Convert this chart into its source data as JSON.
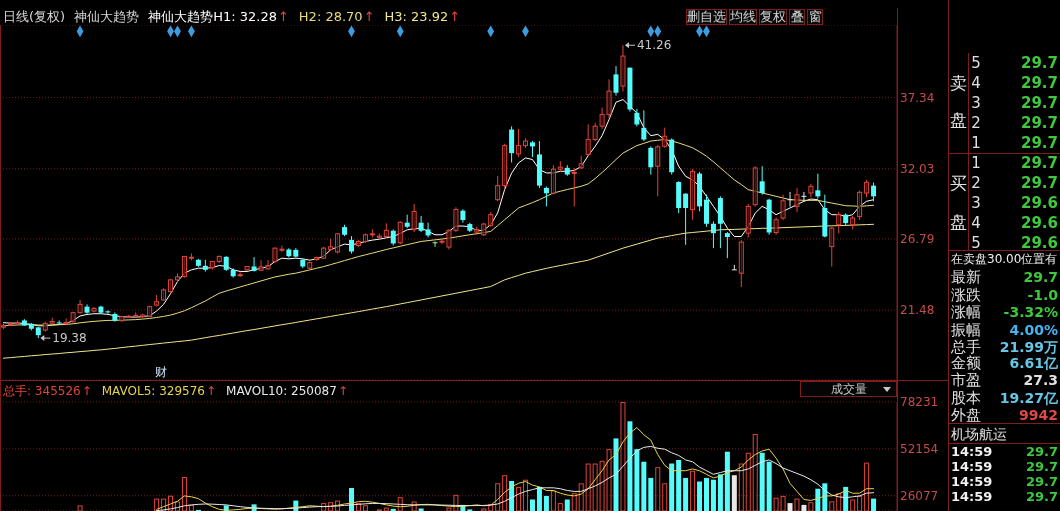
{
  "chart_data": [
    {
      "type": "candlestick",
      "title": "日线(复权)",
      "subtitle": "神仙大趋势",
      "categories": [
        null,
        null,
        null,
        null,
        null,
        null,
        null,
        null,
        null,
        null,
        null,
        null,
        null,
        null,
        null,
        null,
        null,
        null,
        null,
        null,
        null,
        null,
        null,
        null,
        null,
        null,
        null,
        null,
        null,
        null,
        null,
        null,
        null,
        null,
        null,
        null,
        null,
        null,
        null,
        null,
        null,
        null,
        null,
        null,
        null,
        null,
        null,
        null,
        null,
        null,
        null,
        null,
        null,
        null,
        null,
        null,
        null,
        null,
        null,
        null,
        null,
        null,
        null,
        null,
        null,
        null,
        null,
        null,
        null,
        null,
        null,
        null,
        null,
        null,
        null,
        null,
        null,
        null,
        null,
        null,
        null,
        null,
        null,
        null,
        null,
        null,
        null,
        null,
        null,
        null,
        null,
        null,
        null,
        null,
        null,
        null,
        null,
        null,
        null,
        null,
        null,
        null,
        null,
        null,
        null,
        null,
        null,
        null,
        null,
        null,
        null,
        null,
        null,
        null,
        null,
        null,
        null,
        null,
        null,
        null,
        null,
        null,
        null,
        null,
        null,
        null
      ],
      "ohlc": [
        [
          20.2,
          20.45,
          20.05,
          20.3
        ],
        [
          20.4,
          20.55,
          20.3,
          20.43
        ],
        [
          20.45,
          20.7,
          20.4,
          20.55
        ],
        [
          20.7,
          20.8,
          20.3,
          20.32
        ],
        [
          20.45,
          20.5,
          19.95,
          20.08
        ],
        [
          20.18,
          20.2,
          19.38,
          19.6
        ],
        [
          19.98,
          20.6,
          19.86,
          20.48
        ],
        [
          20.5,
          20.9,
          20.45,
          20.62
        ],
        [
          20.55,
          20.7,
          20.4,
          20.48
        ],
        [
          20.45,
          20.85,
          20.4,
          20.55
        ],
        [
          20.6,
          21.35,
          20.55,
          21.28
        ],
        [
          21.28,
          22.23,
          21.2,
          21.9
        ],
        [
          21.73,
          21.9,
          21.2,
          21.28
        ],
        [
          21.4,
          21.7,
          21.3,
          21.6
        ],
        [
          21.73,
          21.8,
          21.2,
          21.28
        ],
        [
          21.38,
          21.45,
          21.2,
          21.3
        ],
        [
          21.18,
          21.3,
          20.6,
          20.68
        ],
        [
          20.68,
          21.05,
          20.6,
          20.98
        ],
        [
          20.95,
          21.1,
          20.9,
          21.02
        ],
        [
          21.0,
          21.3,
          20.95,
          21.08
        ],
        [
          20.98,
          21.2,
          20.9,
          21.1
        ],
        [
          20.98,
          21.8,
          20.95,
          21.73
        ],
        [
          21.85,
          22.6,
          21.75,
          22.1
        ],
        [
          22.23,
          23.1,
          22.2,
          22.98
        ],
        [
          22.85,
          23.8,
          22.8,
          23.73
        ],
        [
          23.73,
          24.2,
          23.6,
          23.95
        ],
        [
          23.98,
          25.5,
          23.9,
          25.48
        ],
        [
          25.4,
          25.7,
          25.2,
          25.42
        ],
        [
          25.23,
          25.3,
          24.7,
          24.78
        ],
        [
          24.78,
          25.23,
          24.35,
          24.48
        ],
        [
          24.63,
          25.15,
          24.5,
          25.1
        ],
        [
          25.1,
          25.55,
          25.0,
          25.48
        ],
        [
          25.45,
          25.5,
          24.4,
          24.48
        ],
        [
          24.48,
          24.6,
          23.9,
          24.0
        ],
        [
          24.05,
          24.3,
          23.95,
          24.12
        ],
        [
          24.48,
          24.75,
          24.4,
          24.73
        ],
        [
          24.73,
          25.43,
          24.35,
          24.4
        ],
        [
          24.45,
          25.2,
          24.4,
          24.7
        ],
        [
          24.55,
          25.2,
          24.5,
          24.8
        ],
        [
          25.1,
          26.15,
          25.0,
          26.1
        ],
        [
          26.0,
          26.3,
          25.8,
          26.02
        ],
        [
          26.0,
          26.1,
          25.4,
          25.5
        ],
        [
          25.97,
          26.1,
          25.4,
          25.47
        ],
        [
          25.23,
          25.3,
          24.6,
          24.73
        ],
        [
          24.6,
          25.1,
          24.5,
          25.02
        ],
        [
          25.25,
          25.45,
          25.15,
          25.4
        ],
        [
          25.35,
          26.2,
          25.3,
          26.1
        ],
        [
          26.0,
          26.8,
          25.9,
          26.2
        ],
        [
          25.82,
          27.2,
          25.7,
          27.17
        ],
        [
          27.67,
          27.85,
          27.0,
          27.1
        ],
        [
          26.72,
          27.0,
          25.7,
          25.85
        ],
        [
          26.3,
          26.7,
          26.2,
          26.6
        ],
        [
          26.6,
          27.2,
          26.5,
          27.1
        ],
        [
          27.15,
          27.5,
          26.9,
          27.17
        ],
        [
          26.9,
          27.2,
          26.85,
          27.0
        ],
        [
          26.97,
          27.95,
          26.9,
          27.43
        ],
        [
          27.4,
          27.5,
          26.3,
          26.45
        ],
        [
          26.5,
          28.1,
          26.4,
          28.03
        ],
        [
          28.0,
          28.6,
          27.6,
          27.7
        ],
        [
          27.48,
          29.4,
          27.3,
          28.84
        ],
        [
          28.0,
          28.5,
          27.3,
          27.4
        ],
        [
          27.5,
          28.0,
          26.9,
          27.05
        ],
        [
          26.5,
          26.6,
          26.2,
          26.5
        ],
        [
          26.55,
          26.8,
          26.4,
          26.62
        ],
        [
          26.18,
          27.5,
          26.0,
          27.43
        ],
        [
          27.43,
          29.15,
          27.3,
          28.99
        ],
        [
          28.9,
          29.0,
          28.0,
          28.2
        ],
        [
          27.9,
          28.0,
          27.3,
          27.4
        ],
        [
          27.3,
          27.7,
          27.1,
          27.5
        ],
        [
          27.1,
          28.0,
          27.0,
          27.9
        ],
        [
          27.8,
          28.8,
          27.7,
          28.6
        ],
        [
          29.72,
          31.5,
          29.6,
          30.77
        ],
        [
          30.77,
          33.9,
          30.6,
          33.76
        ],
        [
          34.96,
          35.2,
          32.5,
          33.2
        ],
        [
          33.14,
          35.0,
          32.9,
          33.76
        ],
        [
          33.76,
          34.3,
          33.6,
          34.1
        ],
        [
          34.0,
          34.1,
          32.9,
          33.7
        ],
        [
          33.1,
          34.1,
          30.6,
          30.77
        ],
        [
          30.6,
          30.7,
          29.22,
          30.2
        ],
        [
          30.2,
          32.3,
          30.1,
          32.0
        ],
        [
          32.0,
          32.6,
          31.8,
          32.15
        ],
        [
          32.1,
          32.3,
          31.5,
          31.6
        ],
        [
          31.7,
          32.1,
          29.22,
          31.75
        ],
        [
          32.1,
          33.0,
          32.0,
          32.4
        ],
        [
          33.09,
          35.34,
          33.0,
          34.21
        ],
        [
          34.21,
          35.46,
          34.1,
          35.21
        ],
        [
          35.21,
          36.6,
          35.0,
          36.09
        ],
        [
          36.09,
          38.71,
          35.8,
          37.83
        ],
        [
          39.08,
          39.7,
          37.5,
          37.71
        ],
        [
          38.21,
          41.26,
          37.8,
          40.45
        ],
        [
          39.58,
          39.6,
          36.3,
          36.46
        ],
        [
          36.21,
          36.5,
          35.2,
          35.34
        ],
        [
          35.09,
          36.4,
          34.1,
          34.21
        ],
        [
          33.59,
          33.7,
          31.59,
          32.14
        ],
        [
          32.22,
          33.8,
          29.97,
          33.67
        ],
        [
          33.71,
          35.1,
          33.6,
          34.46
        ],
        [
          34.21,
          34.3,
          31.6,
          31.77
        ],
        [
          31.04,
          31.1,
          28.72,
          29.1
        ],
        [
          30.17,
          30.2,
          26.35,
          29.1
        ],
        [
          28.97,
          32.0,
          28.22,
          31.84
        ],
        [
          31.67,
          31.8,
          28.85,
          29.22
        ],
        [
          29.72,
          30.1,
          27.7,
          27.92
        ],
        [
          27.92,
          28.1,
          26.1,
          27.22
        ],
        [
          29.84,
          29.97,
          26.1,
          27.92
        ],
        [
          27.22,
          27.3,
          25.35,
          26.93
        ],
        [
          24.48,
          24.85,
          24.48,
          24.48
        ],
        [
          24.23,
          26.7,
          23.2,
          26.55
        ],
        [
          27.22,
          29.4,
          26.9,
          29.22
        ],
        [
          29.35,
          32.22,
          29.2,
          32.09
        ],
        [
          31.09,
          32.22,
          30.1,
          30.22
        ],
        [
          29.72,
          29.8,
          27.1,
          27.27
        ],
        [
          27.27,
          28.4,
          27.1,
          28.22
        ],
        [
          28.35,
          30.09,
          28.2,
          29.64
        ],
        [
          29.72,
          30.3,
          29.2,
          29.72
        ],
        [
          29.22,
          30.6,
          28.8,
          30.09
        ],
        [
          29.97,
          30.3,
          29.6,
          29.97
        ],
        [
          30.22,
          30.9,
          29.9,
          30.72
        ],
        [
          30.42,
          31.67,
          29.8,
          29.97
        ],
        [
          29.1,
          30.1,
          26.9,
          26.97
        ],
        [
          26.22,
          27.7,
          24.72,
          27.6
        ],
        [
          27.85,
          28.8,
          27.2,
          28.6
        ],
        [
          28.6,
          28.7,
          27.8,
          27.97
        ],
        [
          27.85,
          28.5,
          27.5,
          28.35
        ],
        [
          28.47,
          30.4,
          28.2,
          30.27
        ],
        [
          30.22,
          31.2,
          29.9,
          31.02
        ],
        [
          30.77,
          31.0,
          29.6,
          29.97
        ]
      ],
      "colors": [
        "#e0453a",
        "#e0453a",
        "#e0453a",
        "#54fcfc",
        "#54fcfc",
        "#54fcfc",
        "#e0453a",
        "#e0453a",
        "#54fcfc",
        "#e0453a",
        "#e0453a",
        "#e0453a",
        "#54fcfc",
        "#e0453a",
        "#54fcfc",
        "#54fcfc",
        "#54fcfc",
        "#e0453a",
        "#e0453a",
        "#e0453a",
        "#e0453a",
        "#e0453a",
        "#e0453a",
        "#e0453a",
        "#e0453a",
        "#e0453a",
        "#e0453a",
        "#e0453a",
        "#54fcfc",
        "#54fcfc",
        "#e0453a",
        "#e0453a",
        "#54fcfc",
        "#54fcfc",
        "#e0453a",
        "#e0453a",
        "#54fcfc",
        "#e0453a",
        "#e0453a",
        "#e0453a",
        "#e0453a",
        "#54fcfc",
        "#54fcfc",
        "#54fcfc",
        "#e0453a",
        "#e0453a",
        "#e0453a",
        "#e0453a",
        "#e0453a",
        "#54fcfc",
        "#54fcfc",
        "#e0453a",
        "#e0453a",
        "#e0453a",
        "#e0453a",
        "#e0453a",
        "#54fcfc",
        "#e0453a",
        "#54fcfc",
        "#e0453a",
        "#54fcfc",
        "#54fcfc",
        "#9cf09c",
        "#e0453a",
        "#e0453a",
        "#e0453a",
        "#54fcfc",
        "#54fcfc",
        "#e0453a",
        "#e0453a",
        "#e0453a",
        "#e0453a",
        "#e0453a",
        "#54fcfc",
        "#e0453a",
        "#e0453a",
        "#54fcfc",
        "#54fcfc",
        "#54fcfc",
        "#e0453a",
        "#e0453a",
        "#54fcfc",
        "#e0453a",
        "#e0453a",
        "#e0453a",
        "#e0453a",
        "#e0453a",
        "#e0453a",
        "#54fcfc",
        "#e0453a",
        "#54fcfc",
        "#54fcfc",
        "#54fcfc",
        "#54fcfc",
        "#e0453a",
        "#e0453a",
        "#54fcfc",
        "#54fcfc",
        "#54fcfc",
        "#e0453a",
        "#54fcfc",
        "#54fcfc",
        "#54fcfc",
        "#54fcfc",
        "#54fcfc",
        "#e8e8e8",
        "#e0453a",
        "#e0453a",
        "#e0453a",
        "#54fcfc",
        "#54fcfc",
        "#e0453a",
        "#e0453a",
        "#e8e8e8",
        "#e0453a",
        "#e8e8e8",
        "#e0453a",
        "#54fcfc",
        "#54fcfc",
        "#e0453a",
        "#e0453a",
        "#54fcfc",
        "#e0453a",
        "#e0453a",
        "#e0453a",
        "#54fcfc"
      ],
      "ylim": [
        16.25,
        42.77
      ],
      "yticks": [
        21.48,
        26.79,
        32.03,
        37.34
      ],
      "grid": "y",
      "legend": "top left",
      "tick_labels": "y",
      "series": [
        {
          "type": "line",
          "name": "神仙大趋势H1: 32.28",
          "color": "#ffffff",
          "values": [
            20.53,
            20.5,
            20.5,
            20.48,
            20.4,
            20.3,
            20.3,
            20.35,
            20.4,
            20.45,
            20.7,
            21.03,
            21.15,
            21.2,
            21.2,
            21.15,
            21.05,
            20.98,
            20.95,
            20.95,
            20.98,
            21.05,
            21.4,
            21.9,
            22.7,
            23.6,
            24.23,
            24.48,
            24.6,
            24.6,
            24.65,
            24.8,
            24.75,
            24.48,
            24.36,
            24.36,
            24.48,
            24.6,
            24.72,
            25.1,
            25.35,
            25.3,
            25.35,
            25.3,
            25.2,
            25.3,
            25.5,
            25.97,
            26.2,
            26.4,
            26.35,
            26.45,
            26.6,
            26.7,
            26.77,
            26.87,
            26.97,
            27.2,
            27.47,
            27.55,
            27.6,
            27.35,
            27.1,
            27.1,
            27.35,
            27.75,
            27.75,
            27.7,
            27.4,
            27.45,
            27.85,
            28.73,
            30.47,
            31.7,
            32.47,
            32.84,
            32.72,
            31.97,
            31.72,
            31.72,
            31.84,
            31.84,
            31.9,
            32.2,
            33.0,
            33.7,
            34.5,
            35.7,
            37.0,
            37.2,
            36.7,
            36.2,
            35.1,
            34.5,
            34.6,
            34.2,
            33.46,
            32.22,
            31.47,
            31.2,
            30.72,
            29.97,
            29.22,
            28.47,
            27.6,
            26.97,
            26.97,
            27.72,
            28.72,
            29.22,
            28.97,
            28.6,
            28.85,
            29.1,
            29.35,
            29.6,
            29.77,
            29.72,
            28.97,
            28.6,
            28.6,
            28.47,
            28.6,
            29.22,
            29.6,
            29.72
          ]
        },
        {
          "type": "line",
          "name": "H2: 28.70",
          "color": "#e8dc78",
          "values": [
            20.3,
            20.33,
            20.36,
            20.38,
            20.38,
            20.36,
            20.35,
            20.36,
            20.38,
            20.4,
            20.45,
            20.52,
            20.58,
            20.63,
            20.67,
            20.7,
            20.71,
            20.72,
            20.74,
            20.76,
            20.8,
            20.85,
            20.92,
            21.0,
            21.1,
            21.25,
            21.42,
            21.65,
            21.9,
            22.15,
            22.45,
            22.73,
            22.9,
            23.05,
            23.2,
            23.35,
            23.5,
            23.65,
            23.8,
            23.95,
            24.05,
            24.15,
            24.23,
            24.35,
            24.47,
            24.6,
            24.72,
            24.87,
            25.02,
            25.17,
            25.32,
            25.47,
            25.6,
            25.73,
            25.86,
            26.0,
            26.12,
            26.24,
            26.36,
            26.48,
            26.6,
            26.66,
            26.72,
            26.78,
            26.85,
            26.93,
            27.02,
            27.1,
            27.18,
            27.26,
            27.35,
            27.78,
            28.22,
            28.66,
            29.1,
            29.3,
            29.5,
            29.72,
            29.97,
            30.22,
            30.35,
            30.48,
            30.6,
            30.72,
            30.9,
            31.3,
            31.75,
            32.22,
            32.72,
            33.2,
            33.48,
            33.76,
            33.93,
            34.1,
            34.16,
            34.21,
            34.1,
            33.96,
            33.78,
            33.6,
            33.3,
            32.97,
            32.55,
            32.1,
            31.65,
            31.2,
            30.85,
            30.47,
            30.35,
            30.22,
            30.1,
            29.97,
            29.85,
            29.72,
            29.7,
            29.67,
            29.67,
            29.67,
            29.57,
            29.47,
            29.37,
            29.27,
            29.25,
            29.22,
            29.26,
            29.3
          ]
        },
        {
          "type": "line",
          "name": "H3: 23.92",
          "color": "#f0e68c",
          "values": [
            17.88,
            17.92,
            17.97,
            18.01,
            18.06,
            18.1,
            18.15,
            18.19,
            18.23,
            18.28,
            18.32,
            18.37,
            18.41,
            18.46,
            18.5,
            18.56,
            18.61,
            18.67,
            18.73,
            18.78,
            18.84,
            18.9,
            18.95,
            19.01,
            19.06,
            19.12,
            19.17,
            19.23,
            19.32,
            19.41,
            19.5,
            19.58,
            19.67,
            19.76,
            19.85,
            19.94,
            20.02,
            20.11,
            20.2,
            20.29,
            20.38,
            20.46,
            20.55,
            20.64,
            20.73,
            20.82,
            20.91,
            21.0,
            21.09,
            21.18,
            21.27,
            21.36,
            21.45,
            21.55,
            21.64,
            21.73,
            21.83,
            21.93,
            22.03,
            22.13,
            22.23,
            22.33,
            22.43,
            22.53,
            22.63,
            22.73,
            22.83,
            22.93,
            23.03,
            23.13,
            23.23,
            23.48,
            23.73,
            23.9,
            24.06,
            24.23,
            24.35,
            24.47,
            24.59,
            24.7,
            24.8,
            24.9,
            25.0,
            25.1,
            25.2,
            25.38,
            25.56,
            25.74,
            25.92,
            26.1,
            26.25,
            26.4,
            26.55,
            26.7,
            26.85,
            26.94,
            27.04,
            27.13,
            27.22,
            27.27,
            27.32,
            27.37,
            27.42,
            27.47,
            27.49,
            27.5,
            27.52,
            27.54,
            27.56,
            27.58,
            27.59,
            27.61,
            27.63,
            27.65,
            27.67,
            27.69,
            27.71,
            27.73,
            27.75,
            27.77,
            27.78,
            27.8,
            27.82,
            27.84,
            27.86,
            27.88
          ]
        },
        {
          "type": "scatter",
          "marker": "diamond",
          "color": "#3c9ee0",
          "values": [
            null,
            null,
            null,
            null,
            null,
            null,
            null,
            null,
            null,
            null,
            null,
            42.3,
            null,
            null,
            null,
            null,
            null,
            null,
            null,
            null,
            null,
            null,
            null,
            null,
            42.3,
            42.3,
            null,
            42.3,
            null,
            null,
            null,
            null,
            null,
            null,
            null,
            null,
            null,
            null,
            null,
            null,
            null,
            null,
            null,
            null,
            null,
            null,
            null,
            null,
            null,
            null,
            42.3,
            null,
            null,
            null,
            null,
            null,
            null,
            42.3,
            null,
            null,
            null,
            null,
            null,
            null,
            null,
            null,
            null,
            null,
            null,
            null,
            42.3,
            null,
            null,
            null,
            null,
            42.3,
            null,
            null,
            null,
            null,
            null,
            null,
            null,
            null,
            null,
            null,
            null,
            null,
            null,
            null,
            null,
            null,
            null,
            42.3,
            42.3,
            null,
            null,
            null,
            null,
            null,
            42.3,
            42.3,
            null,
            null,
            null,
            null,
            null,
            null,
            null,
            null,
            null,
            null,
            null,
            null,
            null,
            null,
            null,
            null,
            null,
            null,
            null,
            null,
            null,
            null,
            null,
            null
          ]
        }
      ],
      "annotations": [
        "41.26",
        "19.38",
        "财",
        "↑",
        "↑",
        "↑"
      ]
    },
    {
      "type": "bar",
      "categories": [
        null,
        null,
        null,
        null,
        null,
        null,
        null,
        null,
        null,
        null,
        null,
        null,
        null,
        null,
        null,
        null,
        null,
        null,
        null,
        null,
        null,
        null,
        null,
        null,
        null,
        null,
        null,
        null,
        null,
        null,
        null,
        null,
        null,
        null,
        null,
        null,
        null,
        null,
        null,
        null,
        null,
        null,
        null,
        null,
        null,
        null,
        null,
        null,
        null,
        null,
        null,
        null,
        null,
        null,
        null,
        null,
        null,
        null,
        null,
        null,
        null,
        null,
        null,
        null,
        null,
        null,
        null,
        null,
        null,
        null,
        null,
        null,
        null,
        null,
        null,
        null,
        null,
        null,
        null,
        null,
        null,
        null,
        null,
        null,
        null,
        null,
        null,
        null,
        null,
        null,
        null,
        null,
        null,
        null,
        null,
        null,
        null,
        null,
        null,
        null,
        null,
        null,
        null,
        null,
        null,
        null,
        null,
        null,
        null,
        null,
        null,
        null,
        null,
        null,
        null,
        null,
        null,
        null,
        null,
        null,
        null,
        null,
        null,
        null,
        null,
        null
      ],
      "ylim": [
        17600,
        78231
      ],
      "yticks": [
        26077,
        52154,
        78231
      ],
      "grid": "y",
      "legend": "top left",
      "tick_labels": "y",
      "series": [
        {
          "name": "总手: 345526",
          "color": "#e0453a",
          "colors": [
            "#e0453a",
            "#e0453a",
            "#e0453a",
            "#54fcfc",
            "#54fcfc",
            "#54fcfc",
            "#e0453a",
            "#e0453a",
            "#54fcfc",
            "#e0453a",
            "#e0453a",
            "#e0453a",
            "#54fcfc",
            "#e0453a",
            "#54fcfc",
            "#54fcfc",
            "#54fcfc",
            "#e0453a",
            "#e0453a",
            "#e0453a",
            "#e0453a",
            "#e0453a",
            "#e0453a",
            "#e0453a",
            "#e0453a",
            "#e0453a",
            "#e0453a",
            "#e0453a",
            "#54fcfc",
            "#54fcfc",
            "#e0453a",
            "#e0453a",
            "#54fcfc",
            "#54fcfc",
            "#e0453a",
            "#e0453a",
            "#54fcfc",
            "#e0453a",
            "#e0453a",
            "#e0453a",
            "#e0453a",
            "#54fcfc",
            "#54fcfc",
            "#54fcfc",
            "#e0453a",
            "#e0453a",
            "#e0453a",
            "#e0453a",
            "#e0453a",
            "#54fcfc",
            "#54fcfc",
            "#e0453a",
            "#e0453a",
            "#e0453a",
            "#e0453a",
            "#e0453a",
            "#54fcfc",
            "#e0453a",
            "#54fcfc",
            "#e0453a",
            "#54fcfc",
            "#54fcfc",
            "#9cf09c",
            "#e0453a",
            "#e0453a",
            "#e0453a",
            "#54fcfc",
            "#54fcfc",
            "#e0453a",
            "#e0453a",
            "#e0453a",
            "#e0453a",
            "#e0453a",
            "#54fcfc",
            "#e0453a",
            "#e0453a",
            "#54fcfc",
            "#54fcfc",
            "#54fcfc",
            "#e0453a",
            "#e0453a",
            "#54fcfc",
            "#e0453a",
            "#e0453a",
            "#e0453a",
            "#e0453a",
            "#e0453a",
            "#e0453a",
            "#54fcfc",
            "#e0453a",
            "#54fcfc",
            "#54fcfc",
            "#54fcfc",
            "#54fcfc",
            "#e0453a",
            "#e0453a",
            "#54fcfc",
            "#54fcfc",
            "#54fcfc",
            "#e0453a",
            "#54fcfc",
            "#54fcfc",
            "#54fcfc",
            "#54fcfc",
            "#54fcfc",
            "#e8e8e8",
            "#e0453a",
            "#e0453a",
            "#e0453a",
            "#54fcfc",
            "#54fcfc",
            "#e0453a",
            "#e0453a",
            "#e8e8e8",
            "#e0453a",
            "#e8e8e8",
            "#e0453a",
            "#54fcfc",
            "#54fcfc",
            "#e0453a",
            "#e0453a",
            "#54fcfc",
            "#e0453a",
            "#e0453a",
            "#e0453a",
            "#54fcfc"
          ],
          "values": [
            null,
            null,
            null,
            null,
            null,
            null,
            null,
            null,
            null,
            null,
            null,
            20700,
            null,
            null,
            null,
            null,
            null,
            null,
            null,
            null,
            null,
            null,
            24500,
            24500,
            26100,
            22900,
            36500,
            21000,
            18200,
            null,
            null,
            null,
            20700,
            null,
            null,
            null,
            21300,
            null,
            null,
            null,
            null,
            null,
            23400,
            null,
            null,
            null,
            22000,
            22500,
            23400,
            null,
            30400,
            22000,
            20800,
            null,
            18500,
            19500,
            18800,
            25300,
            null,
            22900,
            19000,
            null,
            null,
            null,
            19500,
            26600,
            21000,
            18500,
            null,
            19000,
            21500,
            33000,
            37500,
            34300,
            31000,
            35000,
            24000,
            31000,
            26000,
            29000,
            22000,
            24000,
            27500,
            33000,
            44000,
            44000,
            45500,
            52000,
            58000,
            78200,
            67500,
            52000,
            45000,
            36000,
            42000,
            33000,
            44000,
            46000,
            36000,
            40000,
            34000,
            36000,
            35000,
            38000,
            50600,
            37500,
            44000,
            50000,
            60400,
            50000,
            45000,
            25000,
            26000,
            22000,
            24500,
            21000,
            22500,
            30000,
            33000,
            23000,
            27500,
            31000,
            24000,
            26000,
            44500,
            24500
          ]
        },
        {
          "type": "line",
          "name": "MAVOL5: 329576",
          "color": "#e8d44d",
          "values": [
            null,
            null,
            null,
            null,
            null,
            null,
            null,
            null,
            null,
            null,
            null,
            null,
            null,
            null,
            null,
            null,
            null,
            null,
            null,
            null,
            null,
            null,
            18500,
            20000,
            21500,
            23000,
            26000,
            25500,
            24500,
            22000,
            20000,
            18500,
            18000,
            18200,
            18500,
            19000,
            19200,
            19000,
            18800,
            18600,
            18800,
            19200,
            19600,
            20000,
            20500,
            20300,
            20000,
            20200,
            20800,
            21500,
            22000,
            22800,
            23000,
            22500,
            21800,
            21000,
            20300,
            20000,
            20200,
            20800,
            21200,
            21300,
            21000,
            20600,
            20300,
            20000,
            20200,
            20600,
            21000,
            20500,
            20800,
            24000,
            28000,
            31000,
            33000,
            34000,
            32000,
            31000,
            29000,
            29000,
            27500,
            26500,
            26000,
            27000,
            30000,
            35000,
            40000,
            46000,
            49000,
            56000,
            61000,
            64000,
            60000,
            57000,
            49000,
            43000,
            40000,
            40000,
            40000,
            41000,
            40000,
            38000,
            36000,
            37000,
            39000,
            40000,
            42000,
            46000,
            49000,
            51000,
            52000,
            47000,
            41000,
            33000,
            28500,
            24000,
            23500,
            24500,
            26000,
            26000,
            27000,
            29000,
            27500,
            27500,
            30000,
            30000
          ]
        },
        {
          "type": "line",
          "name": "MAVOL10: 250087",
          "color": "#e8e8e8",
          "values": [
            null,
            null,
            null,
            null,
            null,
            null,
            null,
            null,
            null,
            null,
            null,
            null,
            null,
            null,
            null,
            null,
            null,
            null,
            null,
            null,
            null,
            null,
            17800,
            18200,
            18800,
            19500,
            20500,
            21000,
            21300,
            21500,
            21400,
            21200,
            21000,
            20500,
            20000,
            19600,
            19300,
            19100,
            19000,
            18900,
            18900,
            19000,
            19200,
            19500,
            19800,
            20000,
            20100,
            20200,
            20400,
            20700,
            21000,
            21300,
            21600,
            21800,
            21800,
            21700,
            21500,
            21300,
            21100,
            21000,
            21000,
            21000,
            21000,
            20900,
            20800,
            20700,
            20600,
            20600,
            20600,
            20700,
            20900,
            21500,
            23000,
            25000,
            27000,
            28500,
            29500,
            30500,
            30500,
            30500,
            30000,
            29000,
            28500,
            28500,
            30000,
            31500,
            33500,
            36000,
            38000,
            42500,
            47000,
            51000,
            53000,
            53500,
            52500,
            52000,
            50000,
            48500,
            46000,
            45000,
            42000,
            40000,
            38000,
            39000,
            40000,
            40000,
            40000,
            41000,
            43000,
            45000,
            46000,
            44000,
            41500,
            40000,
            38500,
            37000,
            35000,
            32500,
            29000,
            26500,
            25500,
            25000,
            25500,
            26000,
            27500,
            27800
          ]
        }
      ],
      "annotations": [
        "成交量",
        "↑",
        "↑",
        "↑"
      ]
    },
    {
      "type": "other",
      "annotations": [
        "删自选",
        "均线",
        "复权",
        "叠",
        "窗",
        "卖",
        "盘",
        "5",
        "4",
        "3",
        "2",
        "1",
        "29.7",
        "29.7",
        "29.7",
        "29.7",
        "29.7",
        "买",
        "盘",
        "1",
        "2",
        "3",
        "4",
        "5",
        "29.7",
        "29.7",
        "29.6",
        "29.6",
        "29.6",
        "在卖盘30.00位置有",
        "最新",
        "29.7",
        "涨跌",
        "-1.0",
        "涨幅",
        "-3.32%",
        "振幅",
        "4.00%",
        "总手",
        "21.99万",
        "金额",
        "6.61亿",
        "市盈",
        "27.3",
        "股本",
        "19.27亿",
        "外盘",
        "9942",
        "机场航运",
        "14:59",
        "29.7",
        "14:59",
        "29.7",
        "14:59",
        "29.7",
        "14:59",
        "29.7"
      ]
    }
  ]
}
